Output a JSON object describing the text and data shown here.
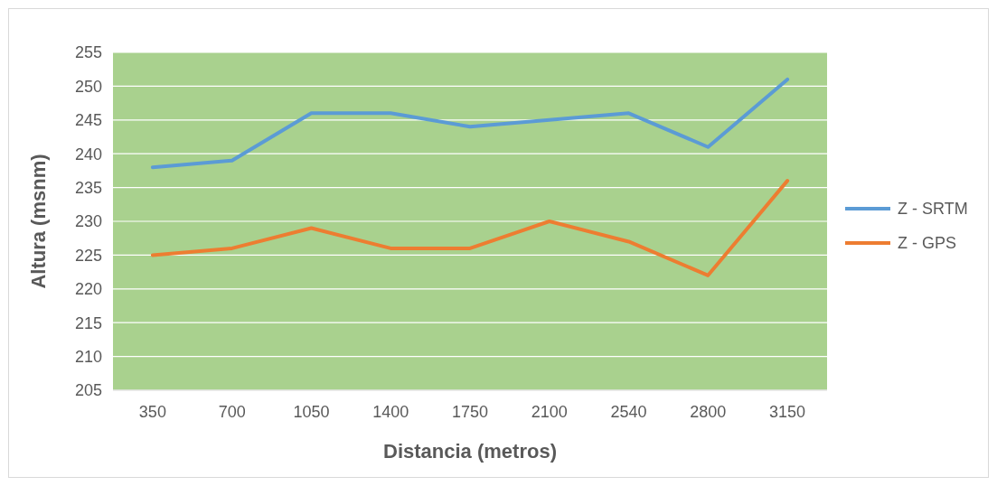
{
  "chart_data": {
    "type": "line",
    "xlabel": "Distancia (metros)",
    "ylabel": "Altura (msnm)",
    "categories": [
      "350",
      "700",
      "1050",
      "1400",
      "1750",
      "2100",
      "2540",
      "2800",
      "3150"
    ],
    "series": [
      {
        "name": "Z - SRTM",
        "color": "#5b9bd5",
        "values": [
          238,
          239,
          246,
          246,
          244,
          245,
          246,
          241,
          251
        ]
      },
      {
        "name": "Z - GPS",
        "color": "#ed7d31",
        "values": [
          225,
          226,
          229,
          226,
          226,
          230,
          227,
          222,
          236
        ]
      }
    ],
    "ylim": [
      205,
      255
    ],
    "yticks": [
      205,
      210,
      215,
      220,
      225,
      230,
      235,
      240,
      245,
      250,
      255
    ],
    "grid": "y",
    "legend": "right",
    "marker": "none",
    "line_style": "solid"
  }
}
